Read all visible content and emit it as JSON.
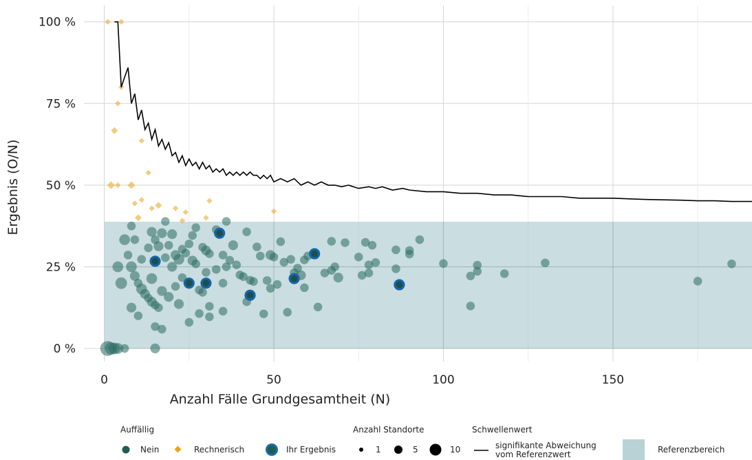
{
  "chart_data": {
    "type": "scatter",
    "xlabel": "Anzahl Fälle Grundgesamtheit (N)",
    "ylabel": "Ergebnis (O/N)",
    "xlim": [
      -6,
      191
    ],
    "ylim": [
      -4,
      105
    ],
    "x_ticks": [
      0,
      50,
      100,
      150
    ],
    "x_tick_labels": [
      "0",
      "50",
      "100",
      "150"
    ],
    "y_ticks": [
      0,
      25,
      50,
      75,
      100
    ],
    "y_tick_labels": [
      "0 %",
      "25 %",
      "50 %",
      "75 %",
      "100 %"
    ],
    "grid": true,
    "reference_range": [
      0,
      38.8
    ],
    "threshold_line": [
      [
        3,
        100
      ],
      [
        4,
        100
      ],
      [
        5,
        80
      ],
      [
        6,
        83
      ],
      [
        7,
        86
      ],
      [
        8,
        75
      ],
      [
        9,
        78
      ],
      [
        10,
        70
      ],
      [
        11,
        73
      ],
      [
        12,
        67
      ],
      [
        13,
        69
      ],
      [
        14,
        64
      ],
      [
        15,
        67
      ],
      [
        16,
        62
      ],
      [
        17,
        64
      ],
      [
        18,
        61
      ],
      [
        19,
        63
      ],
      [
        20,
        59
      ],
      [
        21,
        60
      ],
      [
        22,
        57
      ],
      [
        23,
        59
      ],
      [
        24,
        56
      ],
      [
        25,
        58
      ],
      [
        26,
        56
      ],
      [
        27,
        57
      ],
      [
        28,
        55
      ],
      [
        29,
        57
      ],
      [
        30,
        55
      ],
      [
        31,
        56
      ],
      [
        32,
        54
      ],
      [
        33,
        55
      ],
      [
        34,
        54
      ],
      [
        35,
        55
      ],
      [
        36,
        53
      ],
      [
        37,
        54
      ],
      [
        38,
        53
      ],
      [
        39,
        54
      ],
      [
        40,
        53
      ],
      [
        41,
        54
      ],
      [
        42,
        53
      ],
      [
        43,
        54
      ],
      [
        44,
        53
      ],
      [
        45,
        53
      ],
      [
        46,
        52
      ],
      [
        47,
        53
      ],
      [
        48,
        52
      ],
      [
        49,
        53
      ],
      [
        50,
        51
      ],
      [
        52,
        52
      ],
      [
        54,
        51
      ],
      [
        56,
        52
      ],
      [
        58,
        50
      ],
      [
        60,
        51
      ],
      [
        62,
        50
      ],
      [
        64,
        51
      ],
      [
        66,
        50
      ],
      [
        68,
        50
      ],
      [
        70,
        49.5
      ],
      [
        72,
        50
      ],
      [
        75,
        49
      ],
      [
        78,
        49.5
      ],
      [
        80,
        49
      ],
      [
        82,
        49.5
      ],
      [
        85,
        48.5
      ],
      [
        88,
        49
      ],
      [
        90,
        48.5
      ],
      [
        95,
        48
      ],
      [
        100,
        48
      ],
      [
        105,
        47.5
      ],
      [
        110,
        47.5
      ],
      [
        115,
        47
      ],
      [
        120,
        47
      ],
      [
        125,
        46.5
      ],
      [
        130,
        46.5
      ],
      [
        135,
        46.5
      ],
      [
        140,
        46
      ],
      [
        145,
        46
      ],
      [
        150,
        46
      ],
      [
        155,
        45.8
      ],
      [
        160,
        45.6
      ],
      [
        165,
        45.5
      ],
      [
        170,
        45.4
      ],
      [
        175,
        45.2
      ],
      [
        180,
        45.2
      ],
      [
        185,
        45
      ],
      [
        191,
        45
      ]
    ],
    "series": [
      {
        "name": "Nein",
        "points": [
          {
            "x": 1,
            "y": 0,
            "size": 10
          },
          {
            "x": 2,
            "y": 0,
            "size": 6
          },
          {
            "x": 3,
            "y": 0,
            "size": 5
          },
          {
            "x": 4,
            "y": 0,
            "size": 4
          },
          {
            "x": 6,
            "y": 0,
            "size": 2
          },
          {
            "x": 15,
            "y": 0,
            "size": 3
          },
          {
            "x": 4,
            "y": 25,
            "size": 4
          },
          {
            "x": 5,
            "y": 20,
            "size": 5
          },
          {
            "x": 6,
            "y": 33.3,
            "size": 4
          },
          {
            "x": 7,
            "y": 28.6,
            "size": 2
          },
          {
            "x": 8,
            "y": 37.5,
            "size": 2
          },
          {
            "x": 8,
            "y": 25,
            "size": 4
          },
          {
            "x": 8,
            "y": 12.5,
            "size": 3
          },
          {
            "x": 9,
            "y": 22.2,
            "size": 3
          },
          {
            "x": 9,
            "y": 33.3,
            "size": 2
          },
          {
            "x": 10,
            "y": 20,
            "size": 2
          },
          {
            "x": 10,
            "y": 10,
            "size": 2
          },
          {
            "x": 11,
            "y": 27.3,
            "size": 2
          },
          {
            "x": 11,
            "y": 18.2,
            "size": 4
          },
          {
            "x": 12,
            "y": 16.7,
            "size": 3
          },
          {
            "x": 13,
            "y": 30.8,
            "size": 2
          },
          {
            "x": 13,
            "y": 15.4,
            "size": 2
          },
          {
            "x": 14,
            "y": 35.7,
            "size": 3
          },
          {
            "x": 14,
            "y": 21.4,
            "size": 4
          },
          {
            "x": 14,
            "y": 14.3,
            "size": 3
          },
          {
            "x": 15,
            "y": 33.3,
            "size": 2
          },
          {
            "x": 15,
            "y": 13.3,
            "size": 2
          },
          {
            "x": 15,
            "y": 6.7,
            "size": 2
          },
          {
            "x": 16,
            "y": 31.3,
            "size": 3
          },
          {
            "x": 16,
            "y": 12.5,
            "size": 2
          },
          {
            "x": 17,
            "y": 35.3,
            "size": 3
          },
          {
            "x": 17,
            "y": 17.6,
            "size": 3
          },
          {
            "x": 17,
            "y": 5.9,
            "size": 2
          },
          {
            "x": 18,
            "y": 38.9,
            "size": 2
          },
          {
            "x": 18,
            "y": 27.8,
            "size": 2
          },
          {
            "x": 19,
            "y": 31.6,
            "size": 2
          },
          {
            "x": 19,
            "y": 15.8,
            "size": 3
          },
          {
            "x": 20,
            "y": 35,
            "size": 3
          },
          {
            "x": 20,
            "y": 25,
            "size": 3
          },
          {
            "x": 21,
            "y": 28.6,
            "size": 3
          },
          {
            "x": 21,
            "y": 19,
            "size": 2
          },
          {
            "x": 22,
            "y": 27.3,
            "size": 4
          },
          {
            "x": 22,
            "y": 13.6,
            "size": 3
          },
          {
            "x": 23,
            "y": 30.4,
            "size": 2
          },
          {
            "x": 23,
            "y": 21.7,
            "size": 2
          },
          {
            "x": 24,
            "y": 29.2,
            "size": 2
          },
          {
            "x": 25,
            "y": 32,
            "size": 2
          },
          {
            "x": 25,
            "y": 8,
            "size": 2
          },
          {
            "x": 26,
            "y": 34.6,
            "size": 2
          },
          {
            "x": 26,
            "y": 26.9,
            "size": 3
          },
          {
            "x": 27,
            "y": 37,
            "size": 2
          },
          {
            "x": 27,
            "y": 25.9,
            "size": 2
          },
          {
            "x": 28,
            "y": 17.9,
            "size": 2
          },
          {
            "x": 28,
            "y": 10.7,
            "size": 2
          },
          {
            "x": 29,
            "y": 31,
            "size": 2
          },
          {
            "x": 29,
            "y": 17.2,
            "size": 2
          },
          {
            "x": 30,
            "y": 23.3,
            "size": 2
          },
          {
            "x": 30,
            "y": 30,
            "size": 3
          },
          {
            "x": 31,
            "y": 29,
            "size": 2
          },
          {
            "x": 31,
            "y": 12.9,
            "size": 2
          },
          {
            "x": 31,
            "y": 9.7,
            "size": 2
          },
          {
            "x": 33,
            "y": 24.2,
            "size": 2
          },
          {
            "x": 33,
            "y": 36.4,
            "size": 2
          },
          {
            "x": 35,
            "y": 20,
            "size": 2
          },
          {
            "x": 35,
            "y": 11.4,
            "size": 2
          },
          {
            "x": 35,
            "y": 28.6,
            "size": 2
          },
          {
            "x": 36,
            "y": 25,
            "size": 2
          },
          {
            "x": 36,
            "y": 38.9,
            "size": 2
          },
          {
            "x": 37,
            "y": 27,
            "size": 2
          },
          {
            "x": 38,
            "y": 31.6,
            "size": 3
          },
          {
            "x": 39,
            "y": 25.6,
            "size": 2
          },
          {
            "x": 40,
            "y": 22.5,
            "size": 2
          },
          {
            "x": 41,
            "y": 22,
            "size": 2
          },
          {
            "x": 42,
            "y": 14.3,
            "size": 2
          },
          {
            "x": 42,
            "y": 35.7,
            "size": 2
          },
          {
            "x": 43,
            "y": 20.9,
            "size": 2
          },
          {
            "x": 44,
            "y": 20.5,
            "size": 2
          },
          {
            "x": 45,
            "y": 31.1,
            "size": 2
          },
          {
            "x": 46,
            "y": 28.3,
            "size": 2
          },
          {
            "x": 47,
            "y": 10.6,
            "size": 2
          },
          {
            "x": 48,
            "y": 20.8,
            "size": 2
          },
          {
            "x": 49,
            "y": 28.6,
            "size": 3
          },
          {
            "x": 49,
            "y": 18.4,
            "size": 2
          },
          {
            "x": 50,
            "y": 28,
            "size": 2
          },
          {
            "x": 51,
            "y": 19.6,
            "size": 2
          },
          {
            "x": 52,
            "y": 32.7,
            "size": 2
          },
          {
            "x": 53,
            "y": 26.4,
            "size": 2
          },
          {
            "x": 54,
            "y": 11.1,
            "size": 2
          },
          {
            "x": 55,
            "y": 27.3,
            "size": 2
          },
          {
            "x": 56,
            "y": 23.2,
            "size": 2
          },
          {
            "x": 57,
            "y": 24.6,
            "size": 2
          },
          {
            "x": 58,
            "y": 22.4,
            "size": 3
          },
          {
            "x": 59,
            "y": 27.1,
            "size": 2
          },
          {
            "x": 59,
            "y": 18.6,
            "size": 2
          },
          {
            "x": 60,
            "y": 28.3,
            "size": 2
          },
          {
            "x": 63,
            "y": 12.7,
            "size": 2
          },
          {
            "x": 65,
            "y": 23.1,
            "size": 2
          },
          {
            "x": 67,
            "y": 32.8,
            "size": 2
          },
          {
            "x": 67,
            "y": 23.9,
            "size": 2
          },
          {
            "x": 68,
            "y": 25,
            "size": 2
          },
          {
            "x": 69,
            "y": 21.7,
            "size": 3
          },
          {
            "x": 71,
            "y": 32.4,
            "size": 2
          },
          {
            "x": 75,
            "y": 28,
            "size": 2
          },
          {
            "x": 76,
            "y": 22.4,
            "size": 2
          },
          {
            "x": 77,
            "y": 32.5,
            "size": 2
          },
          {
            "x": 78,
            "y": 25.6,
            "size": 2
          },
          {
            "x": 78,
            "y": 23.1,
            "size": 2
          },
          {
            "x": 79,
            "y": 31.6,
            "size": 2
          },
          {
            "x": 80,
            "y": 26.3,
            "size": 2
          },
          {
            "x": 86,
            "y": 30.2,
            "size": 2
          },
          {
            "x": 86,
            "y": 24.4,
            "size": 2
          },
          {
            "x": 90,
            "y": 28.9,
            "size": 2
          },
          {
            "x": 90,
            "y": 30,
            "size": 2
          },
          {
            "x": 93,
            "y": 33.3,
            "size": 2
          },
          {
            "x": 100,
            "y": 26,
            "size": 2
          },
          {
            "x": 108,
            "y": 22.2,
            "size": 2
          },
          {
            "x": 108,
            "y": 13,
            "size": 2
          },
          {
            "x": 110,
            "y": 25.5,
            "size": 2
          },
          {
            "x": 110,
            "y": 23.6,
            "size": 2
          },
          {
            "x": 118,
            "y": 22.9,
            "size": 2
          },
          {
            "x": 130,
            "y": 26.2,
            "size": 2
          },
          {
            "x": 175,
            "y": 20.6,
            "size": 2
          },
          {
            "x": 185,
            "y": 25.9,
            "size": 2
          }
        ]
      },
      {
        "name": "Rechnerisch",
        "points": [
          {
            "x": 1,
            "y": 100,
            "size": 1
          },
          {
            "x": 5,
            "y": 100,
            "size": 1
          },
          {
            "x": 2,
            "y": 50,
            "size": 3
          },
          {
            "x": 4,
            "y": 50,
            "size": 1
          },
          {
            "x": 3,
            "y": 66.7,
            "size": 2
          },
          {
            "x": 4,
            "y": 75,
            "size": 1
          },
          {
            "x": 5,
            "y": 80,
            "size": 1
          },
          {
            "x": 8,
            "y": 50,
            "size": 3
          },
          {
            "x": 9,
            "y": 44.4,
            "size": 1
          },
          {
            "x": 10,
            "y": 40,
            "size": 2
          },
          {
            "x": 11,
            "y": 63.6,
            "size": 1
          },
          {
            "x": 11,
            "y": 45.5,
            "size": 1
          },
          {
            "x": 13,
            "y": 53.8,
            "size": 1
          },
          {
            "x": 14,
            "y": 42.9,
            "size": 1
          },
          {
            "x": 16,
            "y": 43.8,
            "size": 2
          },
          {
            "x": 21,
            "y": 42.9,
            "size": 1
          },
          {
            "x": 23,
            "y": 39.1,
            "size": 1
          },
          {
            "x": 24,
            "y": 41.7,
            "size": 1
          },
          {
            "x": 30,
            "y": 40,
            "size": 1
          },
          {
            "x": 31,
            "y": 45.2,
            "size": 1
          },
          {
            "x": 50,
            "y": 42,
            "size": 1
          }
        ]
      },
      {
        "name": "Ihr Ergebnis",
        "points": [
          {
            "x": 15,
            "y": 26.7,
            "size": 3
          },
          {
            "x": 25,
            "y": 20,
            "size": 3
          },
          {
            "x": 30,
            "y": 20,
            "size": 3
          },
          {
            "x": 34,
            "y": 35.3,
            "size": 3
          },
          {
            "x": 43,
            "y": 16.3,
            "size": 3
          },
          {
            "x": 56,
            "y": 21.4,
            "size": 3
          },
          {
            "x": 62,
            "y": 29,
            "size": 3
          },
          {
            "x": 87,
            "y": 19.5,
            "size": 3
          }
        ]
      }
    ]
  },
  "legend": {
    "color_title": "Auffällig",
    "items": [
      {
        "label": "Nein",
        "color": "#1f5c55"
      },
      {
        "label": "Rechnerisch",
        "color": "#e6a817"
      },
      {
        "label": "Ihr Ergebnis",
        "color": "#1a6ea8"
      }
    ],
    "size_title": "Anzahl Standorte",
    "sizes": [
      {
        "label": "1",
        "value": 1
      },
      {
        "label": "5",
        "value": 5
      },
      {
        "label": "10",
        "value": 10
      }
    ],
    "line_title": "Schwellenwert",
    "line_label_1": "signifikante Abweichung",
    "line_label_2": "vom Referenzwert",
    "fill_label": "Referenzbereich"
  },
  "colors": {
    "nein": "#2c6b63",
    "rechnerisch": "#e8a317",
    "ihr_ergebnis_ring": "#1565a8",
    "ihr_ergebnis_fill": "#1d4f4a",
    "reference_fill": "#a7c7cb",
    "threshold_line": "#000000",
    "grid": "#d4d4d4"
  }
}
